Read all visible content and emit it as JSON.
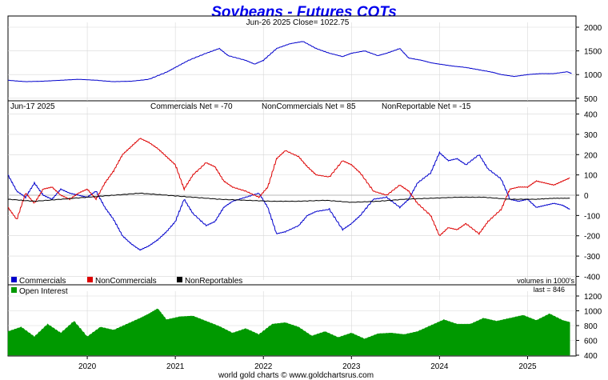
{
  "page": {
    "title": "Soybeans - Futures COTs",
    "footer": "world gold charts © www.goldchartsrus.com",
    "colors": {
      "background": "#ffffff",
      "panel": "#ffffff",
      "price": "#0000cc",
      "commercials": "#0000cc",
      "noncommercials": "#dd0000",
      "nonreportables": "#000000",
      "open_interest": "#009900",
      "grid": "#d8d8d8"
    }
  },
  "chart_data": [
    {
      "id": "price",
      "type": "line",
      "header": "Jun-26  2025   Close= 1022.75",
      "ylim": [
        480,
        2000
      ],
      "yticks": [
        500,
        1000,
        1500,
        2000
      ],
      "xlim": [
        2019.1,
        2025.55
      ],
      "series": [
        {
          "name": "Close",
          "color": "#0000cc",
          "x": [
            2019.1,
            2019.3,
            2019.5,
            2019.7,
            2019.9,
            2020.1,
            2020.3,
            2020.5,
            2020.7,
            2020.9,
            2021.0,
            2021.15,
            2021.35,
            2021.5,
            2021.6,
            2021.8,
            2021.9,
            2022.0,
            2022.15,
            2022.3,
            2022.45,
            2022.6,
            2022.75,
            2022.9,
            2023.0,
            2023.15,
            2023.3,
            2023.4,
            2023.55,
            2023.65,
            2023.8,
            2023.9,
            2024.0,
            2024.15,
            2024.3,
            2024.45,
            2024.6,
            2024.7,
            2024.85,
            2025.0,
            2025.15,
            2025.3,
            2025.45,
            2025.5
          ],
          "y": [
            880,
            850,
            860,
            880,
            900,
            880,
            850,
            860,
            900,
            1050,
            1150,
            1300,
            1450,
            1550,
            1400,
            1300,
            1220,
            1300,
            1550,
            1650,
            1700,
            1550,
            1450,
            1380,
            1450,
            1500,
            1400,
            1450,
            1550,
            1350,
            1300,
            1250,
            1220,
            1180,
            1150,
            1100,
            1050,
            1000,
            960,
            1000,
            1020,
            1020,
            1060,
            1022
          ]
        }
      ]
    },
    {
      "id": "cot",
      "type": "line",
      "header_date": "Jun-17  2025",
      "commercials_net": "Commercials Net = -70",
      "noncommercials_net": "NonCommercials Net = 85",
      "nonreportable_net": "NonReportable Net = -15",
      "ylim": [
        -410,
        410
      ],
      "yticks": [
        -400,
        -300,
        -200,
        -100,
        0,
        100,
        200,
        300,
        400
      ],
      "xlim": [
        2019.1,
        2025.55
      ],
      "units_note": "volumes in 1000's",
      "legend": [
        "Commercials",
        "NonCommercials",
        "NonReportables"
      ],
      "series": [
        {
          "name": "Commercials",
          "color": "#0000cc",
          "x": [
            2019.1,
            2019.2,
            2019.3,
            2019.4,
            2019.5,
            2019.6,
            2019.7,
            2019.8,
            2019.9,
            2020.0,
            2020.1,
            2020.2,
            2020.3,
            2020.4,
            2020.5,
            2020.6,
            2020.7,
            2020.8,
            2020.9,
            2021.0,
            2021.1,
            2021.2,
            2021.35,
            2021.45,
            2021.55,
            2021.65,
            2021.8,
            2021.95,
            2022.05,
            2022.15,
            2022.25,
            2022.4,
            2022.5,
            2022.6,
            2022.75,
            2022.9,
            2023.0,
            2023.1,
            2023.25,
            2023.4,
            2023.55,
            2023.65,
            2023.75,
            2023.9,
            2024.0,
            2024.1,
            2024.2,
            2024.3,
            2024.45,
            2024.55,
            2024.7,
            2024.8,
            2024.9,
            2025.0,
            2025.1,
            2025.2,
            2025.3,
            2025.4,
            2025.48
          ],
          "y": [
            100,
            20,
            -10,
            60,
            0,
            -20,
            30,
            10,
            0,
            -10,
            20,
            -60,
            -120,
            -200,
            -240,
            -270,
            -250,
            -220,
            -180,
            -130,
            -20,
            -90,
            -150,
            -130,
            -60,
            -30,
            -10,
            10,
            -60,
            -190,
            -180,
            -150,
            -100,
            -80,
            -70,
            -170,
            -140,
            -100,
            -20,
            -10,
            -60,
            -20,
            60,
            110,
            210,
            170,
            180,
            150,
            200,
            130,
            80,
            -20,
            -30,
            -20,
            -60,
            -50,
            -40,
            -50,
            -70
          ]
        },
        {
          "name": "NonCommercials",
          "color": "#dd0000",
          "x": [
            2019.1,
            2019.2,
            2019.3,
            2019.4,
            2019.5,
            2019.6,
            2019.7,
            2019.8,
            2019.9,
            2020.0,
            2020.1,
            2020.2,
            2020.3,
            2020.4,
            2020.5,
            2020.6,
            2020.7,
            2020.8,
            2020.9,
            2021.0,
            2021.1,
            2021.2,
            2021.35,
            2021.45,
            2021.55,
            2021.65,
            2021.8,
            2021.95,
            2022.05,
            2022.15,
            2022.25,
            2022.4,
            2022.5,
            2022.6,
            2022.75,
            2022.9,
            2023.0,
            2023.1,
            2023.25,
            2023.4,
            2023.55,
            2023.65,
            2023.75,
            2023.9,
            2024.0,
            2024.1,
            2024.2,
            2024.3,
            2024.45,
            2024.55,
            2024.7,
            2024.8,
            2024.9,
            2025.0,
            2025.1,
            2025.2,
            2025.3,
            2025.4,
            2025.48
          ],
          "y": [
            -60,
            -120,
            10,
            -40,
            30,
            40,
            0,
            -20,
            10,
            30,
            -20,
            60,
            120,
            200,
            240,
            280,
            260,
            230,
            190,
            150,
            30,
            100,
            160,
            140,
            70,
            40,
            20,
            -10,
            40,
            180,
            220,
            190,
            140,
            100,
            90,
            170,
            150,
            110,
            20,
            0,
            50,
            20,
            -40,
            -100,
            -200,
            -160,
            -170,
            -140,
            -190,
            -130,
            -70,
            30,
            40,
            40,
            70,
            60,
            50,
            70,
            85
          ]
        },
        {
          "name": "NonReportables",
          "color": "#000000",
          "x": [
            2019.1,
            2019.4,
            2019.7,
            2020.0,
            2020.3,
            2020.6,
            2020.9,
            2021.2,
            2021.5,
            2021.8,
            2022.1,
            2022.4,
            2022.7,
            2023.0,
            2023.3,
            2023.6,
            2023.9,
            2024.2,
            2024.5,
            2024.8,
            2025.1,
            2025.3,
            2025.48
          ],
          "y": [
            -20,
            -30,
            -20,
            -10,
            0,
            10,
            0,
            -10,
            -20,
            -25,
            -30,
            -30,
            -25,
            -35,
            -30,
            -20,
            -15,
            -10,
            -10,
            -20,
            -20,
            -15,
            -15
          ]
        }
      ]
    },
    {
      "id": "open_interest",
      "type": "area",
      "header": "Open Interest",
      "last_value": "last = 846",
      "ylim": [
        400,
        1200
      ],
      "yticks": [
        400,
        600,
        800,
        1000,
        1200
      ],
      "xlim": [
        2019.1,
        2025.55
      ],
      "x_tick_labels": [
        "2020",
        "2021",
        "2022",
        "2023",
        "2024",
        "2025"
      ],
      "series": [
        {
          "name": "Open Interest",
          "color": "#009900",
          "x": [
            2019.1,
            2019.25,
            2019.4,
            2019.55,
            2019.7,
            2019.85,
            2020.0,
            2020.15,
            2020.3,
            2020.45,
            2020.6,
            2020.7,
            2020.8,
            2020.9,
            2021.05,
            2021.2,
            2021.35,
            2021.5,
            2021.65,
            2021.8,
            2021.95,
            2022.1,
            2022.25,
            2022.4,
            2022.55,
            2022.7,
            2022.85,
            2023.0,
            2023.15,
            2023.3,
            2023.45,
            2023.6,
            2023.75,
            2023.9,
            2024.05,
            2024.2,
            2024.35,
            2024.5,
            2024.65,
            2024.8,
            2024.95,
            2025.1,
            2025.25,
            2025.4,
            2025.48
          ],
          "y": [
            720,
            780,
            650,
            820,
            700,
            860,
            650,
            780,
            740,
            820,
            900,
            960,
            1030,
            880,
            920,
            930,
            860,
            790,
            700,
            760,
            680,
            820,
            840,
            780,
            660,
            720,
            640,
            700,
            620,
            690,
            700,
            680,
            720,
            800,
            880,
            820,
            820,
            900,
            860,
            900,
            940,
            870,
            960,
            870,
            846
          ]
        }
      ]
    }
  ]
}
